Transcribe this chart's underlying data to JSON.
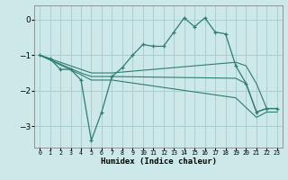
{
  "xlabel": "Humidex (Indice chaleur)",
  "bg_color": "#cce8e8",
  "line_color": "#2e7d6e",
  "grid_color": "#aacfcf",
  "xlim": [
    -0.5,
    23.5
  ],
  "ylim": [
    -3.6,
    0.4
  ],
  "yticks": [
    0,
    -1,
    -2,
    -3
  ],
  "xticks": [
    0,
    1,
    2,
    3,
    4,
    5,
    6,
    7,
    8,
    9,
    10,
    11,
    12,
    13,
    14,
    15,
    16,
    17,
    18,
    19,
    20,
    21,
    22,
    23
  ],
  "series": [
    [
      0,
      -1.0,
      1,
      -1.1,
      2,
      -1.4,
      3,
      -1.4,
      4,
      -1.7,
      5,
      -3.4,
      6,
      -2.6,
      7,
      -1.6,
      8,
      -1.35,
      9,
      -1.0,
      10,
      -0.7,
      11,
      -0.75,
      12,
      -0.75,
      13,
      -0.35,
      14,
      0.05,
      15,
      -0.2,
      16,
      0.05,
      17,
      -0.35,
      18,
      -0.4,
      19,
      -1.3,
      20,
      -1.8,
      21,
      -2.6,
      22,
      -2.5,
      23,
      -2.5
    ],
    [
      0,
      -1.0,
      4,
      -1.4,
      5,
      -1.5,
      7,
      -1.5,
      19,
      -1.2,
      20,
      -1.3,
      21,
      -1.8,
      22,
      -2.5,
      23,
      -2.5
    ],
    [
      0,
      -1.0,
      4,
      -1.5,
      5,
      -1.6,
      7,
      -1.6,
      19,
      -1.65,
      20,
      -1.8,
      21,
      -2.6,
      22,
      -2.5,
      23,
      -2.5
    ],
    [
      0,
      -1.0,
      4,
      -1.55,
      5,
      -1.7,
      7,
      -1.7,
      19,
      -2.2,
      21,
      -2.75,
      22,
      -2.6,
      23,
      -2.6
    ]
  ]
}
